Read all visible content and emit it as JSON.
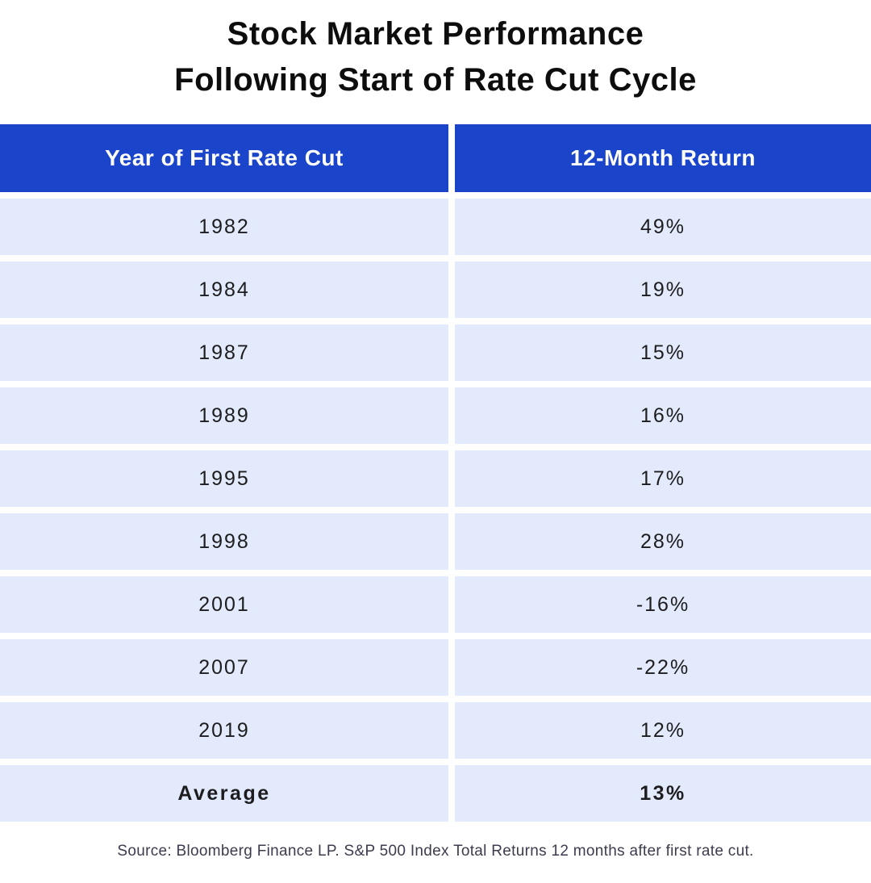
{
  "title": {
    "line1": "Stock Market Performance",
    "line2": "Following Start of Rate Cut Cycle"
  },
  "table": {
    "columns": [
      "Year of First Rate Cut",
      "12-Month Return"
    ],
    "rows": [
      {
        "year": "1982",
        "return": "49%"
      },
      {
        "year": "1984",
        "return": "19%"
      },
      {
        "year": "1987",
        "return": "15%"
      },
      {
        "year": "1989",
        "return": "16%"
      },
      {
        "year": "1995",
        "return": "17%"
      },
      {
        "year": "1998",
        "return": "28%"
      },
      {
        "year": "2001",
        "return": "-16%"
      },
      {
        "year": "2007",
        "return": "-22%"
      },
      {
        "year": "2019",
        "return": "12%"
      }
    ],
    "summary": {
      "label": "Average",
      "return": "13%"
    }
  },
  "footer": {
    "source": "Source: Bloomberg Finance LP. S&P 500 Index Total Returns 12 months after first rate cut."
  },
  "colors": {
    "header_bg": "#1A45CB",
    "row_bg": "#E2EAFC",
    "text": "#1D1D20",
    "source_text": "#3C3C4E"
  },
  "chart_data": {
    "type": "table",
    "title": "Stock Market Performance Following Start of Rate Cut Cycle",
    "columns": [
      "Year of First Rate Cut",
      "12-Month Return"
    ],
    "years": [
      1982,
      1984,
      1987,
      1989,
      1995,
      1998,
      2001,
      2007,
      2019
    ],
    "returns_pct": [
      49,
      19,
      15,
      16,
      17,
      28,
      -16,
      -22,
      12
    ],
    "average_label": "Average",
    "average_return_pct": 13,
    "source": "Source: Bloomberg Finance LP. S&P 500 Index Total Returns 12 months after first rate cut.",
    "legend_position": "none",
    "grid": false
  }
}
